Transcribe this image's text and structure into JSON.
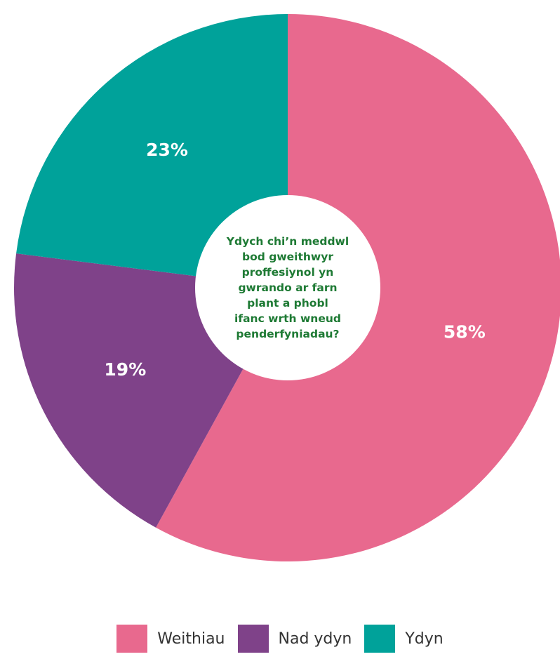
{
  "chart_data": {
    "type": "pie",
    "variant": "donut",
    "title": "Ydych chi’n meddwl bod gweithwyr proffesiynol  yn gwrando ar farn plant a phobl ifanc wrth wneud penderfyniadau?",
    "title_lines": [
      "Ydych chi’n meddwl",
      "bod gweithwyr",
      "proffesiynol  yn",
      "gwrando ar farn",
      "plant a phobl",
      "ifanc wrth wneud",
      "penderfyniadau?"
    ],
    "series": [
      {
        "name": "Weithiau",
        "value": 58,
        "label": "58%",
        "color": "#e8698e"
      },
      {
        "name": "Nad ydyn",
        "value": 19,
        "label": "19%",
        "color": "#7f4289"
      },
      {
        "name": "Ydyn",
        "value": 23,
        "label": "23%",
        "color": "#00a29a"
      }
    ],
    "legend_position": "bottom",
    "center_text_color": "#1e7a34"
  }
}
